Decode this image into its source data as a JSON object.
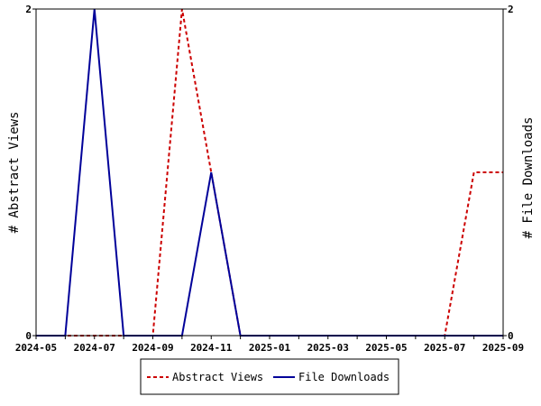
{
  "chart_data": {
    "type": "line",
    "title": "",
    "xlabel": "",
    "y_left_label": "# Abstract Views",
    "y_right_label": "# File Downloads",
    "y_left_ticks": [
      "0",
      "2"
    ],
    "y_right_ticks": [
      "0",
      "2"
    ],
    "ylim_left": [
      0,
      2
    ],
    "ylim_right": [
      0,
      2
    ],
    "x": [
      "2024-05",
      "2024-06",
      "2024-07",
      "2024-08",
      "2024-09",
      "2024-10",
      "2024-11",
      "2024-12",
      "2025-01",
      "2025-02",
      "2025-03",
      "2025-04",
      "2025-05",
      "2025-06",
      "2025-07",
      "2025-08",
      "2025-09"
    ],
    "x_tick_labels": [
      "2024-05",
      "2024-07",
      "2024-09",
      "2024-11",
      "2025-01",
      "2025-03",
      "2025-05",
      "2025-07",
      "2025-09"
    ],
    "grid": false,
    "legend_position": "bottom",
    "series": [
      {
        "name": "Abstract Views",
        "axis": "left",
        "color": "#cc0000",
        "style": "dashed",
        "values": [
          0,
          0,
          0,
          0,
          0,
          2,
          1,
          0,
          0,
          0,
          0,
          0,
          0,
          0,
          0,
          1,
          1
        ]
      },
      {
        "name": "File Downloads",
        "axis": "right",
        "color": "#000099",
        "style": "solid",
        "values": [
          0,
          0,
          2,
          0,
          0,
          0,
          1,
          0,
          0,
          0,
          0,
          0,
          0,
          0,
          0,
          0,
          0
        ]
      }
    ]
  }
}
